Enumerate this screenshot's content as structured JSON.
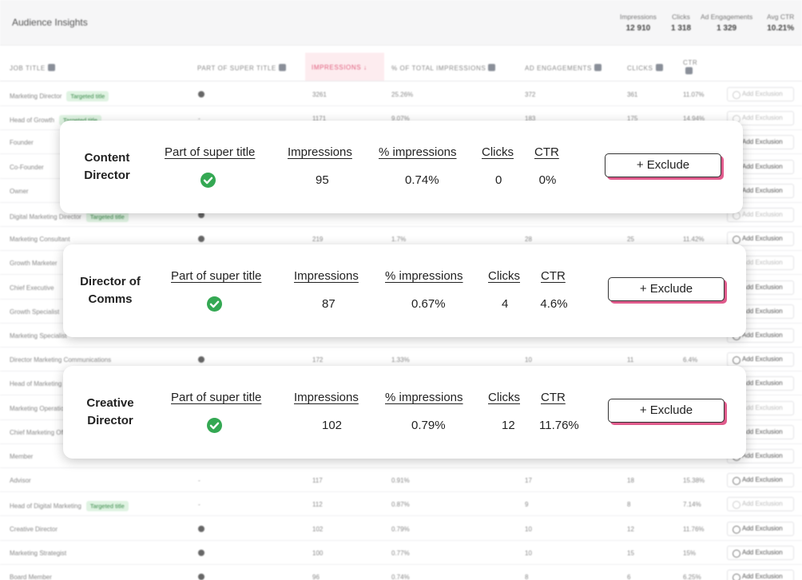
{
  "header": {
    "title": "Audience Insights",
    "summary": [
      {
        "label": "Impressions",
        "value": "12 910"
      },
      {
        "label": "Clicks",
        "value": "1 318"
      },
      {
        "label": "Ad Engagements",
        "value": "1 329"
      },
      {
        "label": "Avg CTR",
        "value": "10.21%"
      }
    ]
  },
  "table": {
    "columns": {
      "job_title": "JOB TITLE",
      "super_title": "PART OF SUPER TITLE",
      "impressions": "IMPRESSIONS ↓",
      "pct_total": "% OF TOTAL IMPRESSIONS",
      "ad_engagements": "AD ENGAGEMENTS",
      "clicks": "CLICKS",
      "ctr": "CTR"
    },
    "exclude_label": "Add Exclusion",
    "targeted_label": "Targeted title",
    "rows": [
      {
        "title": "Marketing Director",
        "targeted": true,
        "super": "check",
        "impressions": "3261",
        "pct": "25.26%",
        "eng": "372",
        "clicks": "361",
        "ctr": "11.07%",
        "excluded": true
      },
      {
        "title": "Head of Growth",
        "targeted": true,
        "super": "-",
        "impressions": "1171",
        "pct": "9.07%",
        "eng": "183",
        "clicks": "175",
        "ctr": "14.94%",
        "excluded": true
      },
      {
        "title": "Founder",
        "targeted": false,
        "super": "",
        "impressions": "",
        "pct": "",
        "eng": "",
        "clicks": "",
        "ctr": "",
        "excluded": false
      },
      {
        "title": "Co-Founder",
        "targeted": false,
        "super": "",
        "impressions": "",
        "pct": "",
        "eng": "",
        "clicks": "",
        "ctr": "",
        "excluded": false
      },
      {
        "title": "Owner",
        "targeted": false,
        "super": "",
        "impressions": "",
        "pct": "",
        "eng": "",
        "clicks": "",
        "ctr": "",
        "excluded": false
      },
      {
        "title": "Digital Marketing Director",
        "targeted": true,
        "super": "check",
        "impressions": "",
        "pct": "",
        "eng": "",
        "clicks": "",
        "ctr": "",
        "excluded": true
      },
      {
        "title": "Marketing Consultant",
        "targeted": false,
        "super": "check",
        "impressions": "219",
        "pct": "1.7%",
        "eng": "28",
        "clicks": "25",
        "ctr": "11.42%",
        "excluded": false
      },
      {
        "title": "Growth Marketer",
        "targeted": false,
        "super": "",
        "impressions": "",
        "pct": "",
        "eng": "",
        "clicks": "",
        "ctr": "",
        "excluded": true
      },
      {
        "title": "Chief Executive",
        "targeted": false,
        "super": "",
        "impressions": "",
        "pct": "",
        "eng": "",
        "clicks": "",
        "ctr": "",
        "excluded": false
      },
      {
        "title": "Growth Specialist",
        "targeted": false,
        "super": "",
        "impressions": "",
        "pct": "",
        "eng": "",
        "clicks": "",
        "ctr": "",
        "excluded": false
      },
      {
        "title": "Marketing Specialist",
        "targeted": false,
        "super": "",
        "impressions": "",
        "pct": "",
        "eng": "",
        "clicks": "",
        "ctr": "",
        "excluded": false
      },
      {
        "title": "Director Marketing Communications",
        "targeted": false,
        "super": "check",
        "impressions": "172",
        "pct": "1.33%",
        "eng": "10",
        "clicks": "11",
        "ctr": "6.4%",
        "excluded": false
      },
      {
        "title": "Head of Marketing",
        "targeted": false,
        "super": "",
        "impressions": "",
        "pct": "",
        "eng": "",
        "clicks": "",
        "ctr": "",
        "excluded": false
      },
      {
        "title": "Marketing Operations",
        "targeted": false,
        "super": "",
        "impressions": "",
        "pct": "",
        "eng": "",
        "clicks": "",
        "ctr": "",
        "excluded": true
      },
      {
        "title": "Chief Marketing Officer",
        "targeted": false,
        "super": "",
        "impressions": "",
        "pct": "",
        "eng": "",
        "clicks": "",
        "ctr": "",
        "excluded": false
      },
      {
        "title": "Member",
        "targeted": false,
        "super": "",
        "impressions": "",
        "pct": "",
        "eng": "",
        "clicks": "",
        "ctr": "",
        "excluded": false
      },
      {
        "title": "Advisor",
        "targeted": false,
        "super": "-",
        "impressions": "117",
        "pct": "0.91%",
        "eng": "17",
        "clicks": "18",
        "ctr": "15.38%",
        "excluded": false
      },
      {
        "title": "Head of Digital Marketing",
        "targeted": true,
        "super": "-",
        "impressions": "112",
        "pct": "0.87%",
        "eng": "9",
        "clicks": "8",
        "ctr": "7.14%",
        "excluded": true
      },
      {
        "title": "Creative Director",
        "targeted": false,
        "super": "check",
        "impressions": "102",
        "pct": "0.79%",
        "eng": "10",
        "clicks": "12",
        "ctr": "11.76%",
        "excluded": false
      },
      {
        "title": "Marketing Strategist",
        "targeted": false,
        "super": "check",
        "impressions": "100",
        "pct": "0.77%",
        "eng": "10",
        "clicks": "15",
        "ctr": "15%",
        "excluded": false
      },
      {
        "title": "Board Member",
        "targeted": false,
        "super": "check",
        "impressions": "96",
        "pct": "0.74%",
        "eng": "8",
        "clicks": "6",
        "ctr": "6.25%",
        "excluded": false
      }
    ]
  },
  "cards": [
    {
      "title": "Content Director",
      "headers": {
        "super": "Part of super title",
        "impressions": "Impressions",
        "pct": "% impressions",
        "clicks": "Clicks",
        "ctr": "CTR"
      },
      "values": {
        "impressions": "95",
        "pct": "0.74%",
        "clicks": "0",
        "ctr": "0%"
      },
      "button": "+ Exclude"
    },
    {
      "title": "Director of Comms",
      "headers": {
        "super": "Part of super title",
        "impressions": "Impressions",
        "pct": "% impressions",
        "clicks": "Clicks",
        "ctr": "CTR"
      },
      "values": {
        "impressions": "87",
        "pct": "0.67%",
        "clicks": "4",
        "ctr": "4.6%"
      },
      "button": "+ Exclude"
    },
    {
      "title": "Creative Director",
      "headers": {
        "super": "Part of super title",
        "impressions": "Impressions",
        "pct": "% impressions",
        "clicks": "Clicks",
        "ctr": "CTR"
      },
      "values": {
        "impressions": "102",
        "pct": "0.79%",
        "clicks": "12",
        "ctr": "11.76%"
      },
      "button": "+ Exclude"
    }
  ],
  "colors": {
    "accent_pink": "#e05b8c",
    "check_green": "#34a853",
    "tag_green": "#dff3e2"
  }
}
